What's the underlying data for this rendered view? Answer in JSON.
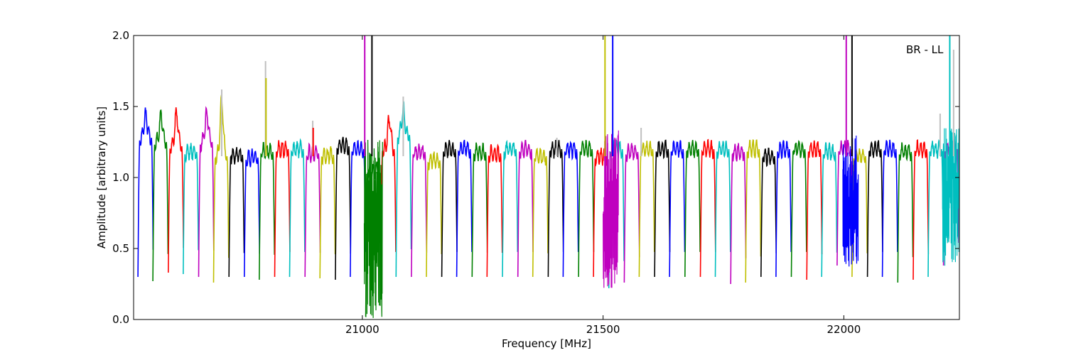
{
  "chart_data": {
    "type": "line",
    "title": "",
    "annotation": "BR - LL",
    "xlabel": "Frequency [MHz]",
    "ylabel": "Amplitude [arbitrary units]",
    "xlim": [
      20525,
      22240
    ],
    "ylim": [
      0.0,
      2.0
    ],
    "xticks": [
      21000,
      21500,
      22000
    ],
    "xtick_labels": [
      "21000",
      "21500",
      "22000"
    ],
    "yticks": [
      0.0,
      0.5,
      1.0,
      1.5,
      2.0
    ],
    "ytick_labels": [
      "0.0",
      "0.5",
      "1.0",
      "1.5",
      "2.0"
    ],
    "grid": false,
    "legend": "none",
    "color_cycle": [
      "#0000ff",
      "#008000",
      "#ff0000",
      "#00bfbf",
      "#bf00bf",
      "#bfbf00",
      "#000000"
    ],
    "shadow_color": "#bfbfbf",
    "band_width_mhz": 32,
    "band_edge_mhz": 4,
    "band_centers_mhz": [
      20550,
      20581,
      20613,
      20644,
      20676,
      20707,
      20739,
      20771,
      20802,
      20834,
      20865,
      20897,
      20928,
      20960,
      20991,
      21023,
      21054,
      21086,
      21118,
      21149,
      21181,
      21212,
      21244,
      21275,
      21307,
      21339,
      21370,
      21402,
      21433,
      21465,
      21496,
      21528,
      21560,
      21591,
      21623,
      21654,
      21686,
      21718,
      21749,
      21781,
      21812,
      21844,
      21875,
      21907,
      21939,
      21970,
      22002,
      22033,
      22065,
      22096,
      22128,
      22160,
      22191,
      22223
    ],
    "band_levels": [
      1.28,
      1.25,
      1.22,
      1.18,
      1.25,
      1.15,
      1.16,
      1.14,
      1.18,
      1.2,
      1.2,
      1.17,
      1.16,
      1.22,
      1.2,
      1.05,
      1.2,
      1.3,
      1.18,
      1.12,
      1.2,
      1.2,
      1.18,
      1.17,
      1.2,
      1.2,
      1.15,
      1.2,
      1.2,
      1.2,
      1.15,
      1.2,
      1.18,
      1.2,
      1.2,
      1.2,
      1.2,
      1.2,
      1.2,
      1.18,
      1.2,
      1.15,
      1.2,
      1.2,
      1.2,
      1.18,
      1.2,
      1.15,
      1.2,
      1.2,
      1.18,
      1.2,
      1.2,
      1.2
    ],
    "band_minima": [
      0.3,
      0.27,
      0.33,
      0.32,
      0.3,
      0.26,
      0.3,
      0.3,
      0.28,
      0.3,
      0.3,
      0.3,
      0.29,
      0.28,
      0.3,
      0.02,
      0.3,
      0.3,
      0.3,
      0.3,
      0.3,
      0.3,
      0.3,
      0.3,
      0.3,
      0.3,
      0.3,
      0.3,
      0.3,
      0.3,
      0.3,
      0.22,
      0.26,
      0.3,
      0.3,
      0.3,
      0.3,
      0.3,
      0.3,
      0.25,
      0.26,
      0.3,
      0.3,
      0.3,
      0.28,
      0.3,
      0.38,
      0.3,
      0.3,
      0.3,
      0.26,
      0.28,
      0.3,
      0.38
    ],
    "peaks": [
      {
        "band": 0,
        "x": 20550,
        "y": 1.44
      },
      {
        "band": 1,
        "x": 20582,
        "y": 1.44
      },
      {
        "band": 2,
        "x": 20614,
        "y": 1.46
      },
      {
        "band": 4,
        "x": 20677,
        "y": 1.45
      },
      {
        "band": 5,
        "x": 20708,
        "y": 1.55
      },
      {
        "band": 16,
        "x": 21056,
        "y": 1.41
      },
      {
        "band": 17,
        "x": 21085,
        "y": 1.48
      },
      {
        "band": 19,
        "x": 21180,
        "y": 1.4
      },
      {
        "band": 38,
        "x": 21683,
        "y": 1.36
      },
      {
        "band": 43,
        "x": 21888,
        "y": 1.36
      }
    ],
    "spikes": [
      {
        "x": 20708,
        "y": 1.62,
        "shadow": true
      },
      {
        "x": 20799,
        "y": 1.82,
        "shadow": true
      },
      {
        "x": 20800,
        "y": 1.7,
        "shadow": false
      },
      {
        "x": 20897,
        "y": 1.4,
        "shadow": true
      },
      {
        "x": 20898,
        "y": 1.35,
        "shadow": false
      },
      {
        "x": 21005,
        "y": 2.0,
        "shadow": false
      },
      {
        "x": 21020,
        "y": 2.0,
        "shadow": false
      },
      {
        "x": 21085,
        "y": 1.57,
        "shadow": true
      },
      {
        "x": 21404,
        "y": 1.28,
        "shadow": true
      },
      {
        "x": 21504,
        "y": 2.0,
        "shadow": false
      },
      {
        "x": 21520,
        "y": 2.0,
        "shadow": false
      },
      {
        "x": 21579,
        "y": 1.35,
        "shadow": true
      },
      {
        "x": 22005,
        "y": 2.0,
        "shadow": false
      },
      {
        "x": 22017,
        "y": 2.0,
        "shadow": false
      },
      {
        "x": 22200,
        "y": 1.45,
        "shadow": true
      },
      {
        "x": 22220,
        "y": 2.0,
        "shadow": false
      },
      {
        "x": 22228,
        "y": 1.9,
        "shadow": true
      }
    ],
    "noisy_regions": [
      {
        "x_from": 21004,
        "x_to": 21042,
        "y_min": 0.0,
        "y_max": 1.28
      },
      {
        "x_from": 21500,
        "x_to": 21532,
        "y_min": 0.2,
        "y_max": 1.34
      },
      {
        "x_from": 21998,
        "x_to": 22030,
        "y_min": 0.37,
        "y_max": 1.3
      },
      {
        "x_from": 22205,
        "x_to": 22240,
        "y_min": 0.37,
        "y_max": 1.35
      }
    ]
  }
}
